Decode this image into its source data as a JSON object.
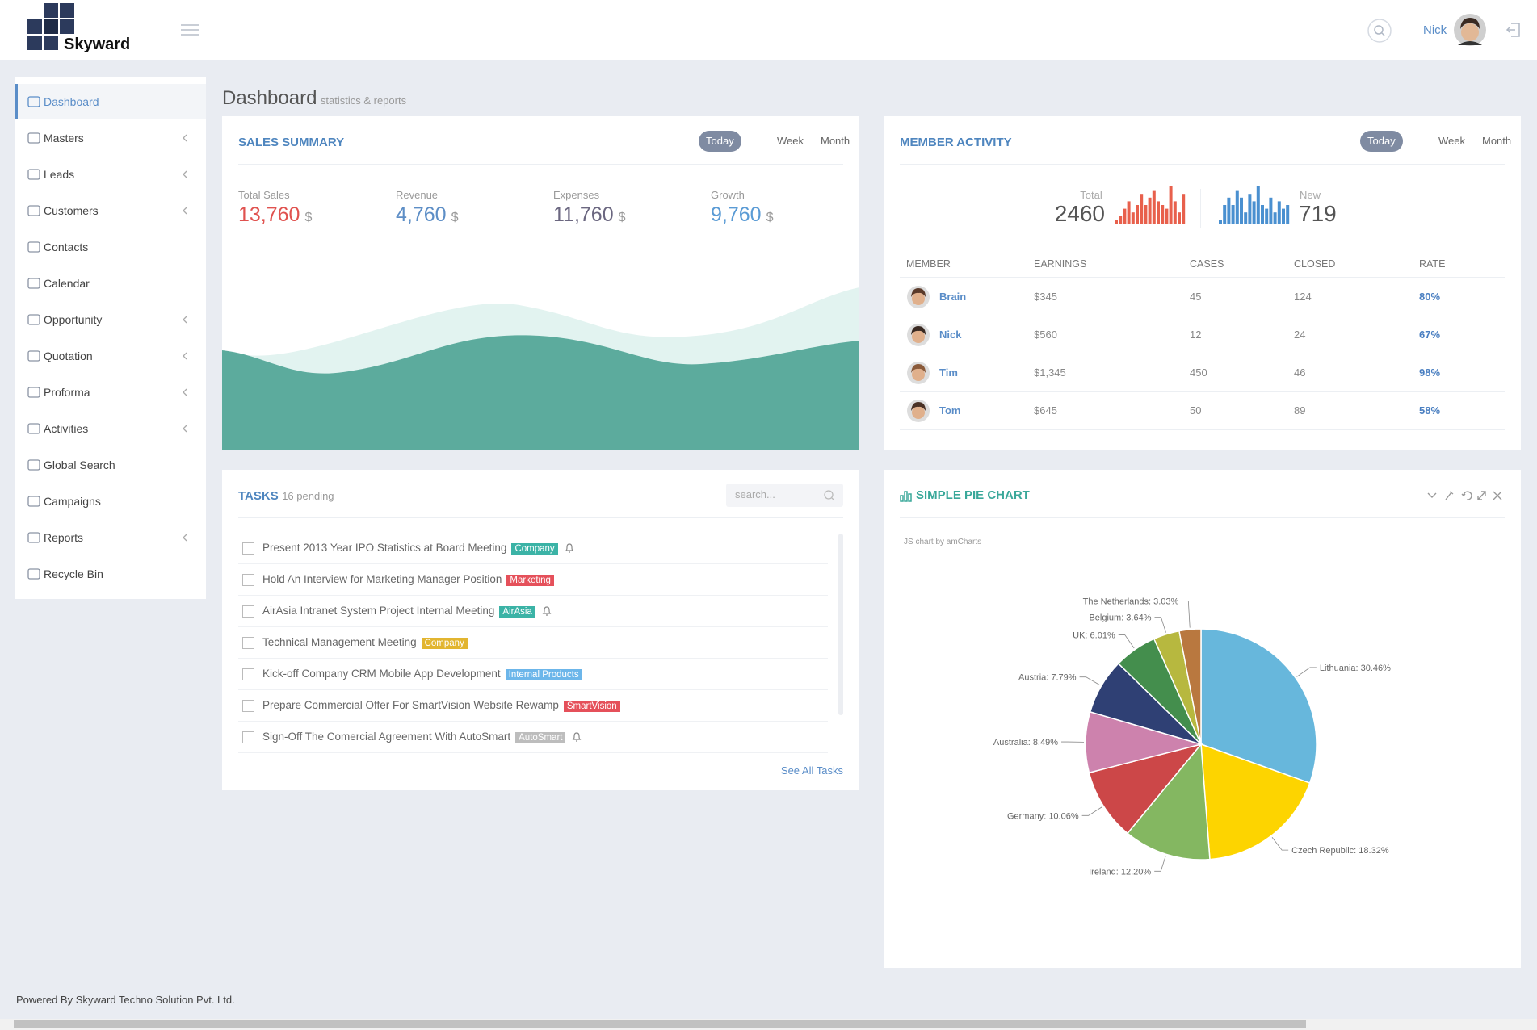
{
  "header": {
    "brand": "Skyward",
    "user": "Nick"
  },
  "sidebar": {
    "active": 0,
    "items": [
      {
        "label": "Dashboard",
        "submenu": false
      },
      {
        "label": "Masters",
        "submenu": true
      },
      {
        "label": "Leads",
        "submenu": true
      },
      {
        "label": "Customers",
        "submenu": true
      },
      {
        "label": "Contacts",
        "submenu": false
      },
      {
        "label": "Calendar",
        "submenu": false
      },
      {
        "label": "Opportunity",
        "submenu": true
      },
      {
        "label": "Quotation",
        "submenu": true
      },
      {
        "label": "Proforma",
        "submenu": true
      },
      {
        "label": "Activities",
        "submenu": true
      },
      {
        "label": "Global Search",
        "submenu": false
      },
      {
        "label": "Campaigns",
        "submenu": false
      },
      {
        "label": "Reports",
        "submenu": true
      },
      {
        "label": "Recycle Bin",
        "submenu": false
      }
    ]
  },
  "page": {
    "title": "Dashboard",
    "subtitle": "statistics & reports"
  },
  "sales_summary": {
    "title": "SALES SUMMARY",
    "tabs": [
      "Today",
      "Week",
      "Month"
    ],
    "active_tab": 0,
    "stats": [
      {
        "label": "Total Sales",
        "value": "13,760",
        "unit": "$",
        "color": "#e0524f"
      },
      {
        "label": "Revenue",
        "value": "4,760",
        "unit": "$",
        "color": "#5d8ec6"
      },
      {
        "label": "Expenses",
        "value": "11,760",
        "unit": "$",
        "color": "#6b6780"
      },
      {
        "label": "Growth",
        "value": "9,760",
        "unit": "$",
        "color": "#5a9bd5"
      }
    ]
  },
  "member_activity": {
    "title": "MEMBER ACTIVITY",
    "tabs": [
      "Today",
      "Week",
      "Month"
    ],
    "active_tab": 0,
    "total": {
      "label": "Total",
      "value": "2460",
      "color": "#e8604c",
      "ylim": [
        0,
        10
      ],
      "bars": [
        1,
        2,
        4,
        6,
        3,
        5,
        8,
        5,
        7,
        9,
        6,
        5,
        4,
        10,
        6,
        3,
        8
      ]
    },
    "new": {
      "label": "New",
      "value": "719",
      "color": "#4a90d0",
      "ylim": [
        0,
        10
      ],
      "bars": [
        1,
        5,
        7,
        5,
        9,
        7,
        3,
        8,
        6,
        10,
        5,
        4,
        7,
        3,
        6,
        4,
        5
      ]
    },
    "table": {
      "headers": [
        "MEMBER",
        "EARNINGS",
        "CASES",
        "CLOSED",
        "RATE"
      ],
      "rows": [
        [
          "Brain",
          "$345",
          "45",
          "124",
          "80%"
        ],
        [
          "Nick",
          "$560",
          "12",
          "24",
          "67%"
        ],
        [
          "Tim",
          "$1,345",
          "450",
          "46",
          "98%"
        ],
        [
          "Tom",
          "$645",
          "50",
          "89",
          "58%"
        ]
      ]
    }
  },
  "tasks": {
    "title": "TASKS",
    "pending": "16 pending",
    "search_placeholder": "search...",
    "items": [
      {
        "text": "Present 2013 Year IPO Statistics at Board Meeting",
        "tag": "Company",
        "tag_color": "#3bb3a6",
        "alert": true
      },
      {
        "text": "Hold An Interview for Marketing Manager Position",
        "tag": "Marketing",
        "tag_color": "#e5505a",
        "alert": false
      },
      {
        "text": "AirAsia Intranet System Project Internal Meeting",
        "tag": "AirAsia",
        "tag_color": "#3bb3a6",
        "alert": true
      },
      {
        "text": "Technical Management Meeting",
        "tag": "Company",
        "tag_color": "#e2b530",
        "alert": false
      },
      {
        "text": "Kick-off Company CRM Mobile App Development",
        "tag": "Internal Products",
        "tag_color": "#6cb6ea",
        "alert": false
      },
      {
        "text": "Prepare Commercial Offer For SmartVision Website Rewamp",
        "tag": "SmartVision",
        "tag_color": "#e5505a",
        "alert": false
      },
      {
        "text": "Sign-Off The Comercial Agreement With AutoSmart",
        "tag": "AutoSmart",
        "tag_color": "#bdbdbd",
        "alert": true
      }
    ],
    "link": "See All Tasks"
  },
  "pie": {
    "title": "SIMPLE PIE CHART",
    "credit": "JS chart by amCharts",
    "chart_data": {
      "type": "pie",
      "slices": [
        {
          "label": "Lithuania: 30.46%",
          "value": 30.46,
          "color": "#67b7dc"
        },
        {
          "label": "Czech Republic: 18.32%",
          "value": 18.32,
          "color": "#fdd400"
        },
        {
          "label": "Ireland: 12.20%",
          "value": 12.2,
          "color": "#84b761"
        },
        {
          "label": "Germany: 10.06%",
          "value": 10.06,
          "color": "#cc4748"
        },
        {
          "label": "Australia: 8.49%",
          "value": 8.49,
          "color": "#cd82ad"
        },
        {
          "label": "Austria: 7.79%",
          "value": 7.79,
          "color": "#2f4074"
        },
        {
          "label": "UK: 6.01%",
          "value": 6.01,
          "color": "#448e4d"
        },
        {
          "label": "Belgium: 3.64%",
          "value": 3.64,
          "color": "#b7b83f"
        },
        {
          "label": "The Netherlands: 3.03%",
          "value": 3.03,
          "color": "#b9783f"
        }
      ]
    }
  },
  "footer": "Powered By Skyward Techno Solution Pvt. Ltd."
}
